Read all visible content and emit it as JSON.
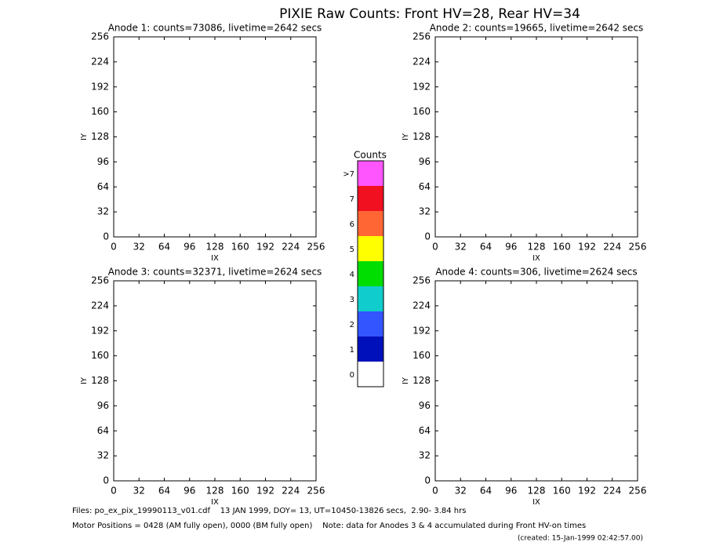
{
  "title": "PIXIE Raw Counts:  Front HV=28, Rear HV=34",
  "chart_data": [
    {
      "type": "heatmap",
      "title": "Anode 1: counts=73086, livetime=2642 secs",
      "xlabel": "IX",
      "ylabel": "IY",
      "xlim": [
        0,
        256
      ],
      "ylim": [
        0,
        256
      ],
      "xticks": [
        0,
        32,
        64,
        96,
        128,
        160,
        192,
        224,
        256
      ],
      "yticks": [
        0,
        32,
        64,
        96,
        128,
        160,
        192,
        224,
        256
      ]
    },
    {
      "type": "heatmap",
      "title": "Anode 2: counts=19665, livetime=2642 secs",
      "xlabel": "IX",
      "ylabel": "IY",
      "xlim": [
        0,
        256
      ],
      "ylim": [
        0,
        256
      ],
      "xticks": [
        0,
        32,
        64,
        96,
        128,
        160,
        192,
        224,
        256
      ],
      "yticks": [
        0,
        32,
        64,
        96,
        128,
        160,
        192,
        224,
        256
      ]
    },
    {
      "type": "heatmap",
      "title": "Anode 3: counts=32371, livetime=2624 secs",
      "xlabel": "IX",
      "ylabel": "IY",
      "xlim": [
        0,
        256
      ],
      "ylim": [
        0,
        256
      ],
      "xticks": [
        0,
        32,
        64,
        96,
        128,
        160,
        192,
        224,
        256
      ],
      "yticks": [
        0,
        32,
        64,
        96,
        128,
        160,
        192,
        224,
        256
      ]
    },
    {
      "type": "heatmap",
      "title": "Anode 4: counts=306, livetime=2624 secs",
      "xlabel": "IX",
      "ylabel": "IY",
      "xlim": [
        0,
        256
      ],
      "ylim": [
        0,
        256
      ],
      "xticks": [
        0,
        32,
        64,
        96,
        128,
        160,
        192,
        224,
        256
      ],
      "yticks": [
        0,
        32,
        64,
        96,
        128,
        160,
        192,
        224,
        256
      ]
    }
  ],
  "colorbar": {
    "title": "Counts",
    "labels": [
      "0",
      "1",
      "2",
      "3",
      "4",
      "5",
      "6",
      "7",
      ">7"
    ],
    "colors": [
      "#ffffff",
      "#0011bb",
      "#3355ff",
      "#11cccc",
      "#00dd00",
      "#ffff00",
      "#ff6633",
      "#f01020",
      "#ff55ff"
    ]
  },
  "footer": {
    "files": "Files: po_ex_pix_19990113_v01.cdf    13 JAN 1999, DOY= 13, UT=10450-13826 secs,  2.90- 3.84 hrs",
    "motor": "Motor Positions = 0428 (AM fully open), 0000 (BM fully open)    Note: data for Anodes 3 & 4 accumulated during Front HV-on times",
    "created": "(created: 15-Jan-1999 02:42:57.00)"
  }
}
